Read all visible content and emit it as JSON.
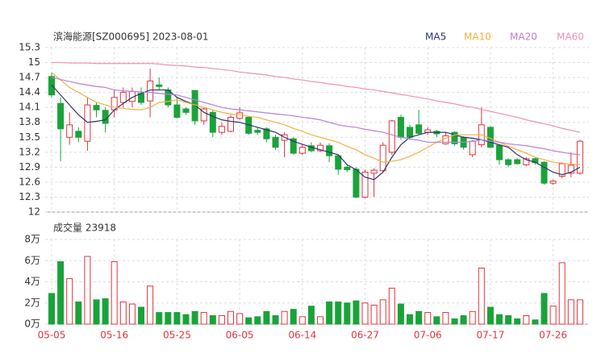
{
  "chart_data": [
    {
      "type": "candlestick",
      "title": "滨海能源[SZ000695] 2023-08-01",
      "categories": [
        "05-05",
        null,
        null,
        null,
        null,
        null,
        null,
        "05-16",
        null,
        null,
        null,
        null,
        null,
        null,
        "05-25",
        null,
        null,
        null,
        null,
        null,
        null,
        "06-05",
        null,
        null,
        null,
        null,
        null,
        null,
        "06-14",
        null,
        null,
        null,
        null,
        null,
        null,
        "06-27",
        null,
        null,
        null,
        null,
        null,
        null,
        "07-06",
        null,
        null,
        null,
        null,
        null,
        null,
        "07-17",
        null,
        null,
        null,
        null,
        null,
        null,
        "07-26",
        null,
        null,
        null
      ],
      "open": [
        14.72,
        14.18,
        13.5,
        13.62,
        13.42,
        14.14,
        14.04,
        14.05,
        14.2,
        14.22,
        14.38,
        14.23,
        14.55,
        14.45,
        14.15,
        14.07,
        14.44,
        13.83,
        14.0,
        13.6,
        13.62,
        13.88,
        13.9,
        13.64,
        13.67,
        13.5,
        13.44,
        13.47,
        13.18,
        13.33,
        13.23,
        13.33,
        13.13,
        12.9,
        12.86,
        12.3,
        12.78,
        12.83,
        13.2,
        13.9,
        13.7,
        13.75,
        13.6,
        13.62,
        13.37,
        13.6,
        13.5,
        13.15,
        13.35,
        13.7,
        13.34,
        13.05,
        13.05,
        12.95,
        13.07,
        13.0,
        12.58,
        12.72,
        12.78,
        12.78
      ],
      "high": [
        14.8,
        14.3,
        14.0,
        13.7,
        14.3,
        14.2,
        14.1,
        14.45,
        14.5,
        14.5,
        14.5,
        14.88,
        14.7,
        14.5,
        14.3,
        14.1,
        14.45,
        14.1,
        14.05,
        13.8,
        13.95,
        14.1,
        13.92,
        13.7,
        13.7,
        13.55,
        13.6,
        13.5,
        13.35,
        13.4,
        13.4,
        13.38,
        13.15,
        12.95,
        12.9,
        12.85,
        12.88,
        13.4,
        13.85,
        13.95,
        13.75,
        14.05,
        13.7,
        13.65,
        13.6,
        13.62,
        13.52,
        13.45,
        14.1,
        13.72,
        13.36,
        13.08,
        13.08,
        13.1,
        13.1,
        13.02,
        12.65,
        13.0,
        13.2,
        13.45
      ],
      "low": [
        14.3,
        13.02,
        13.35,
        13.4,
        13.23,
        13.9,
        13.6,
        13.9,
        14.1,
        14.1,
        14.15,
        13.9,
        14.45,
        14.1,
        13.88,
        13.95,
        13.75,
        13.75,
        13.5,
        13.55,
        13.6,
        13.85,
        13.55,
        13.55,
        13.4,
        13.25,
        13.1,
        13.15,
        13.15,
        13.2,
        13.2,
        13.0,
        12.75,
        12.8,
        12.28,
        12.28,
        12.3,
        12.8,
        13.15,
        13.45,
        13.45,
        13.55,
        13.55,
        13.5,
        13.35,
        13.33,
        13.25,
        13.1,
        13.3,
        13.28,
        12.95,
        12.9,
        12.95,
        12.92,
        12.95,
        12.55,
        12.55,
        12.68,
        12.7,
        12.75
      ],
      "close": [
        14.35,
        13.67,
        13.75,
        13.5,
        14.15,
        14.05,
        13.78,
        14.3,
        14.4,
        14.42,
        14.2,
        14.63,
        14.52,
        14.15,
        13.9,
        14.0,
        13.83,
        14.07,
        13.6,
        13.72,
        13.9,
        13.99,
        13.58,
        13.6,
        13.47,
        13.3,
        13.55,
        13.18,
        13.3,
        13.23,
        13.34,
        13.13,
        12.86,
        12.85,
        12.3,
        12.8,
        12.84,
        13.34,
        13.83,
        13.5,
        13.5,
        13.58,
        13.65,
        13.57,
        13.53,
        13.37,
        13.3,
        13.42,
        13.75,
        13.3,
        13.05,
        12.95,
        12.97,
        13.07,
        12.99,
        12.58,
        12.62,
        12.97,
        12.94,
        13.42
      ],
      "up_color": "#e0353c",
      "down_color": "#1aa33a",
      "series": [
        {
          "name": "MA5",
          "color": "#2e3472",
          "values": [
            14.55,
            14.35,
            14.15,
            13.95,
            13.8,
            13.82,
            13.85,
            14.05,
            14.18,
            14.3,
            14.38,
            14.45,
            14.45,
            14.45,
            14.3,
            14.22,
            14.15,
            14.0,
            13.92,
            13.85,
            13.82,
            13.8,
            13.75,
            13.7,
            13.65,
            13.6,
            13.5,
            13.42,
            13.36,
            13.3,
            13.25,
            13.2,
            13.15,
            12.95,
            12.85,
            12.7,
            12.65,
            12.8,
            13.1,
            13.35,
            13.5,
            13.55,
            13.6,
            13.6,
            13.6,
            13.55,
            13.5,
            13.48,
            13.45,
            13.4,
            13.35,
            13.3,
            13.15,
            13.05,
            13.0,
            12.9,
            12.8,
            12.75,
            12.8,
            12.9
          ]
        },
        {
          "name": "MA10",
          "color": "#f5b041",
          "values": [
            14.8,
            14.65,
            14.5,
            14.4,
            14.3,
            14.2,
            14.15,
            14.1,
            14.08,
            14.06,
            14.05,
            14.1,
            14.2,
            14.22,
            14.25,
            14.2,
            14.15,
            14.1,
            14.05,
            14.0,
            13.97,
            13.95,
            13.92,
            13.9,
            13.85,
            13.8,
            13.75,
            13.68,
            13.62,
            13.55,
            13.5,
            13.45,
            13.4,
            13.32,
            13.25,
            13.15,
            13.08,
            13.0,
            13.02,
            13.05,
            13.12,
            13.2,
            13.3,
            13.4,
            13.48,
            13.55,
            13.55,
            13.55,
            13.55,
            13.48,
            13.4,
            13.32,
            13.25,
            13.18,
            13.1,
            13.05,
            13.0,
            12.98,
            12.96,
            12.95
          ]
        },
        {
          "name": "MA20",
          "color": "#b87fd9",
          "values": [
            14.7,
            14.66,
            14.62,
            14.58,
            14.55,
            14.52,
            14.5,
            14.45,
            14.43,
            14.42,
            14.41,
            14.4,
            14.38,
            14.36,
            14.35,
            14.3,
            14.25,
            14.2,
            14.15,
            14.1,
            14.07,
            14.05,
            14.03,
            14.01,
            13.99,
            13.97,
            13.95,
            13.93,
            13.9,
            13.88,
            13.85,
            13.8,
            13.75,
            13.72,
            13.7,
            13.66,
            13.63,
            13.6,
            13.55,
            13.5,
            13.47,
            13.44,
            13.4,
            13.4,
            13.4,
            13.4,
            13.4,
            13.42,
            13.45,
            13.42,
            13.4,
            13.37,
            13.35,
            13.33,
            13.3,
            13.27,
            13.23,
            13.2,
            13.17,
            13.15
          ]
        },
        {
          "name": "MA60",
          "color": "#f08fb8",
          "values": [
            15.0,
            15.0,
            14.99,
            14.99,
            14.99,
            14.98,
            14.98,
            14.98,
            14.98,
            14.98,
            14.98,
            14.98,
            14.97,
            14.95,
            14.94,
            14.93,
            14.91,
            14.9,
            14.88,
            14.86,
            14.84,
            14.81,
            14.79,
            14.77,
            14.75,
            14.72,
            14.7,
            14.67,
            14.65,
            14.62,
            14.6,
            14.57,
            14.55,
            14.52,
            14.5,
            14.47,
            14.45,
            14.42,
            14.39,
            14.36,
            14.33,
            14.3,
            14.27,
            14.23,
            14.2,
            14.17,
            14.13,
            14.1,
            14.06,
            14.02,
            13.98,
            13.94,
            13.9,
            13.85,
            13.81,
            13.77,
            13.73,
            13.68,
            13.64,
            13.6
          ]
        }
      ],
      "ylim": [
        12,
        15.3
      ],
      "yticks": [
        12,
        12.3,
        12.6,
        12.9,
        13.2,
        13.5,
        13.8,
        14.1,
        14.4,
        14.7,
        15,
        15.3
      ],
      "grid": true,
      "legend": "top-right"
    },
    {
      "type": "bar",
      "title": "成交量 23918",
      "values": [
        2.9,
        5.9,
        4.3,
        2.1,
        6.4,
        2.3,
        2.4,
        5.9,
        2.1,
        1.9,
        1.6,
        3.6,
        1.1,
        1.1,
        1.1,
        0.9,
        1.2,
        1.1,
        0.8,
        0.8,
        1.2,
        1.0,
        0.6,
        0.7,
        1.2,
        0.8,
        1.2,
        1.4,
        0.7,
        1.7,
        0.7,
        2.1,
        2.1,
        2.0,
        2.2,
        2.0,
        1.8,
        2.3,
        3.4,
        1.9,
        0.9,
        1.2,
        1.1,
        0.7,
        1.1,
        0.5,
        0.8,
        1.2,
        5.3,
        1.6,
        0.9,
        0.8,
        0.5,
        0.8,
        0.4,
        2.9,
        1.7,
        5.8,
        2.3,
        2.3
      ],
      "ylim": [
        0,
        8
      ],
      "yticks": [
        {
          "value": 0,
          "label": "0万"
        },
        {
          "value": 2,
          "label": "2万"
        },
        {
          "value": 4,
          "label": "4万"
        },
        {
          "value": 6,
          "label": "6万"
        },
        {
          "value": 8,
          "label": "8万"
        }
      ],
      "grid": true
    }
  ]
}
